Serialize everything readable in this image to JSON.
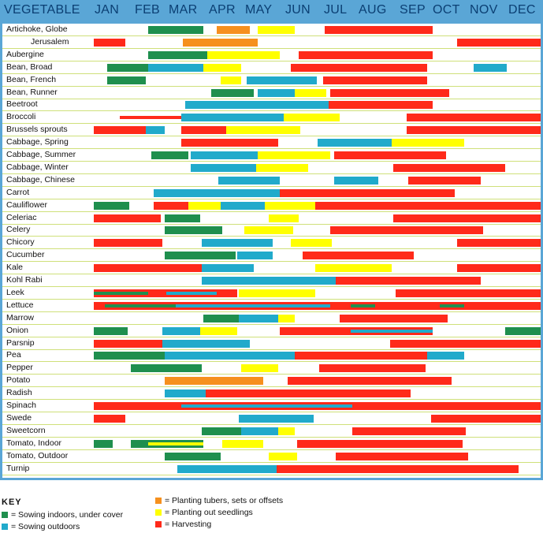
{
  "colors": {
    "sow_indoors": "#1f8f4e",
    "sow_outdoors": "#21aacb",
    "planting_tubers": "#f6901e",
    "planting_seedlings": "#ffff00",
    "harvesting": "#ff2a1a",
    "header_text": "#0b3f73"
  },
  "key": {
    "title": "KEY",
    "items": [
      {
        "type": "sow_indoors",
        "label": "= Sowing indoors, under cover"
      },
      {
        "type": "sow_outdoors",
        "label": "= Sowing outdoors"
      },
      {
        "type": "planting_tubers",
        "label": "= Planting tubers, sets or offsets"
      },
      {
        "type": "planting_seedlings",
        "label": "= Planting out seedlings"
      },
      {
        "type": "harvesting",
        "label": "= Harvesting"
      }
    ]
  },
  "chart_data": {
    "type": "gantt",
    "title": "",
    "column_header": "VEGETABLE",
    "months": [
      "JAN",
      "FEB",
      "MAR",
      "APR",
      "MAY",
      "JUN",
      "JUL",
      "AUG",
      "SEP",
      "OCT",
      "NOV",
      "DEC"
    ],
    "x_unit": "month (0 = start of Jan, 12 = end of Dec)",
    "rows": [
      {
        "name": "Artichoke, Globe",
        "bars": [
          {
            "t": "sow_indoors",
            "s": 1.45,
            "e": 2.95
          },
          {
            "t": "planting_tubers",
            "s": 3.3,
            "e": 4.2
          },
          {
            "t": "planting_seedlings",
            "s": 4.4,
            "e": 5.4
          },
          {
            "t": "harvesting",
            "s": 6.2,
            "e": 9.1
          }
        ]
      },
      {
        "name": "Jerusalem",
        "indent": true,
        "bars": [
          {
            "t": "harvesting",
            "s": 0,
            "e": 0.85
          },
          {
            "t": "planting_tubers",
            "s": 2.4,
            "e": 4.4
          },
          {
            "t": "harvesting",
            "s": 9.75,
            "e": 12
          }
        ]
      },
      {
        "name": "Aubergine",
        "bars": [
          {
            "t": "sow_indoors",
            "s": 1.45,
            "e": 3.05
          },
          {
            "t": "planting_seedlings",
            "s": 3.05,
            "e": 5.0
          },
          {
            "t": "harvesting",
            "s": 5.5,
            "e": 9.1
          }
        ]
      },
      {
        "name": "Bean, Broad",
        "bars": [
          {
            "t": "sow_indoors",
            "s": 0.35,
            "e": 1.45
          },
          {
            "t": "sow_outdoors",
            "s": 1.45,
            "e": 2.95
          },
          {
            "t": "planting_seedlings",
            "s": 2.95,
            "e": 3.95
          },
          {
            "t": "harvesting",
            "s": 5.3,
            "e": 8.95
          },
          {
            "t": "sow_outdoors",
            "s": 10.2,
            "e": 11.1
          }
        ]
      },
      {
        "name": "Bean, French",
        "bars": [
          {
            "t": "sow_indoors",
            "s": 0.35,
            "e": 1.4
          },
          {
            "t": "planting_seedlings",
            "s": 3.4,
            "e": 3.95
          },
          {
            "t": "sow_outdoors",
            "s": 4.1,
            "e": 6.0
          },
          {
            "t": "harvesting",
            "s": 6.15,
            "e": 8.95
          }
        ]
      },
      {
        "name": "Bean, Runner",
        "bars": [
          {
            "t": "sow_indoors",
            "s": 3.15,
            "e": 4.3
          },
          {
            "t": "sow_outdoors",
            "s": 4.4,
            "e": 5.4
          },
          {
            "t": "planting_seedlings",
            "s": 5.4,
            "e": 6.25
          },
          {
            "t": "harvesting",
            "s": 6.35,
            "e": 9.55
          }
        ]
      },
      {
        "name": "Beetroot",
        "bars": [
          {
            "t": "sow_outdoors",
            "s": 2.45,
            "e": 6.3
          },
          {
            "t": "harvesting",
            "s": 6.3,
            "e": 9.1
          }
        ]
      },
      {
        "name": "Broccoli",
        "bars": [
          {
            "t": "harvesting",
            "thin": true,
            "s": 0.7,
            "e": 5.0
          },
          {
            "t": "sow_outdoors",
            "s": 2.35,
            "e": 5.25
          },
          {
            "t": "planting_seedlings",
            "s": 5.1,
            "e": 6.6
          },
          {
            "t": "harvesting",
            "s": 8.4,
            "e": 12
          }
        ]
      },
      {
        "name": "Brussels sprouts",
        "bars": [
          {
            "t": "harvesting",
            "s": 0,
            "e": 1.4
          },
          {
            "t": "sow_outdoors",
            "s": 1.4,
            "e": 1.9
          },
          {
            "t": "harvesting",
            "s": 2.35,
            "e": 3.55
          },
          {
            "t": "planting_seedlings",
            "s": 3.55,
            "e": 5.55
          },
          {
            "t": "harvesting",
            "s": 8.4,
            "e": 12
          }
        ]
      },
      {
        "name": "Cabbage, Spring",
        "bars": [
          {
            "t": "harvesting",
            "s": 2.35,
            "e": 4.95
          },
          {
            "t": "sow_outdoors",
            "s": 6.0,
            "e": 8.0
          },
          {
            "t": "planting_seedlings",
            "s": 8.0,
            "e": 9.95
          }
        ]
      },
      {
        "name": "Cabbage, Summer",
        "bars": [
          {
            "t": "sow_indoors",
            "s": 1.55,
            "e": 2.55
          },
          {
            "t": "sow_outdoors",
            "s": 2.6,
            "e": 4.4
          },
          {
            "t": "planting_seedlings",
            "s": 4.4,
            "e": 6.35
          },
          {
            "t": "harvesting",
            "s": 6.45,
            "e": 9.45
          }
        ]
      },
      {
        "name": "Cabbage, Winter",
        "bars": [
          {
            "t": "sow_outdoors",
            "s": 2.6,
            "e": 4.35
          },
          {
            "t": "planting_seedlings",
            "s": 4.35,
            "e": 5.75
          },
          {
            "t": "harvesting",
            "s": 8.05,
            "e": 11.05
          }
        ]
      },
      {
        "name": "Cabbage, Chinese",
        "bars": [
          {
            "t": "sow_outdoors",
            "s": 3.35,
            "e": 5.0
          },
          {
            "t": "sow_outdoors",
            "s": 6.45,
            "e": 7.65
          },
          {
            "t": "harvesting",
            "s": 8.45,
            "e": 10.4
          }
        ]
      },
      {
        "name": "Carrot",
        "bars": [
          {
            "t": "sow_outdoors",
            "s": 1.6,
            "e": 6.0
          },
          {
            "t": "harvesting",
            "s": 5.0,
            "e": 9.7
          }
        ]
      },
      {
        "name": "Cauliflower",
        "bars": [
          {
            "t": "sow_indoors",
            "s": 0,
            "e": 0.95
          },
          {
            "t": "harvesting",
            "s": 1.6,
            "e": 12
          },
          {
            "t": "planting_seedlings",
            "s": 2.55,
            "e": 5.95
          },
          {
            "t": "sow_outdoors",
            "s": 3.4,
            "e": 4.6
          }
        ]
      },
      {
        "name": "Celeriac",
        "bars": [
          {
            "t": "harvesting",
            "s": 0,
            "e": 1.8
          },
          {
            "t": "sow_indoors",
            "s": 1.9,
            "e": 2.85
          },
          {
            "t": "planting_seedlings",
            "s": 4.7,
            "e": 5.5
          },
          {
            "t": "harvesting",
            "s": 8.05,
            "e": 12
          }
        ]
      },
      {
        "name": "Celery",
        "bars": [
          {
            "t": "sow_indoors",
            "s": 1.9,
            "e": 3.45
          },
          {
            "t": "planting_seedlings",
            "s": 4.05,
            "e": 5.35
          },
          {
            "t": "harvesting",
            "s": 6.35,
            "e": 10.45
          }
        ]
      },
      {
        "name": "Chicory",
        "bars": [
          {
            "t": "harvesting",
            "s": 0,
            "e": 1.85
          },
          {
            "t": "sow_outdoors",
            "s": 2.9,
            "e": 4.8
          },
          {
            "t": "planting_seedlings",
            "s": 5.3,
            "e": 6.4
          },
          {
            "t": "harvesting",
            "s": 9.75,
            "e": 12
          }
        ]
      },
      {
        "name": "Cucumber",
        "bars": [
          {
            "t": "sow_indoors",
            "s": 1.9,
            "e": 3.8
          },
          {
            "t": "sow_outdoors",
            "s": 3.85,
            "e": 4.8
          },
          {
            "t": "harvesting",
            "s": 5.6,
            "e": 8.6
          }
        ]
      },
      {
        "name": "Kale",
        "bars": [
          {
            "t": "harvesting",
            "s": 0,
            "e": 2.9
          },
          {
            "t": "sow_outdoors",
            "s": 2.9,
            "e": 4.3
          },
          {
            "t": "planting_seedlings",
            "s": 5.95,
            "e": 8.0
          },
          {
            "t": "harvesting",
            "s": 9.75,
            "e": 12
          }
        ]
      },
      {
        "name": "Kohl Rabi",
        "bars": [
          {
            "t": "sow_outdoors",
            "s": 2.9,
            "e": 6.5
          },
          {
            "t": "harvesting",
            "s": 6.5,
            "e": 10.4
          }
        ]
      },
      {
        "name": "Leek",
        "bars": [
          {
            "t": "harvesting",
            "s": 0,
            "e": 3.85
          },
          {
            "t": "sow_indoors",
            "thin": true,
            "s": 0,
            "e": 1.45
          },
          {
            "t": "sow_outdoors",
            "thin": true,
            "s": 1.95,
            "e": 3.3
          },
          {
            "t": "planting_seedlings",
            "s": 3.9,
            "e": 5.95
          },
          {
            "t": "harvesting",
            "s": 8.1,
            "e": 12
          }
        ]
      },
      {
        "name": "Lettuce",
        "bars": [
          {
            "t": "harvesting",
            "s": 0,
            "e": 12
          },
          {
            "t": "sow_indoors",
            "thin": true,
            "s": 0.3,
            "e": 2.2
          },
          {
            "t": "sow_outdoors",
            "thin": true,
            "s": 2.2,
            "e": 6.35
          },
          {
            "t": "sow_indoors",
            "thin": true,
            "s": 6.9,
            "e": 7.55
          },
          {
            "t": "sow_indoors",
            "thin": true,
            "s": 9.3,
            "e": 9.95
          }
        ]
      },
      {
        "name": "Marrow",
        "bars": [
          {
            "t": "sow_indoors",
            "s": 2.95,
            "e": 3.9
          },
          {
            "t": "sow_outdoors",
            "s": 3.9,
            "e": 4.95
          },
          {
            "t": "planting_seedlings",
            "s": 4.95,
            "e": 5.4
          },
          {
            "t": "harvesting",
            "s": 6.6,
            "e": 9.5
          }
        ]
      },
      {
        "name": "Onion",
        "bars": [
          {
            "t": "sow_indoors",
            "s": 0,
            "e": 0.9
          },
          {
            "t": "sow_outdoors",
            "s": 1.85,
            "e": 2.85
          },
          {
            "t": "planting_seedlings",
            "s": 2.85,
            "e": 3.85
          },
          {
            "t": "harvesting",
            "s": 5.0,
            "e": 9.1
          },
          {
            "t": "sow_outdoors",
            "thin": true,
            "s": 6.9,
            "e": 9.1
          },
          {
            "t": "sow_indoors",
            "s": 11.05,
            "e": 12
          }
        ]
      },
      {
        "name": "Parsnip",
        "bars": [
          {
            "t": "harvesting",
            "s": 0,
            "e": 1.95
          },
          {
            "t": "sow_outdoors",
            "s": 1.85,
            "e": 4.2
          },
          {
            "t": "harvesting",
            "s": 7.95,
            "e": 12
          }
        ]
      },
      {
        "name": "Pea",
        "bars": [
          {
            "t": "sow_indoors",
            "s": 0,
            "e": 1.9
          },
          {
            "t": "sow_outdoors",
            "s": 1.9,
            "e": 5.4
          },
          {
            "t": "harvesting",
            "s": 5.4,
            "e": 8.95
          },
          {
            "t": "sow_outdoors",
            "s": 8.95,
            "e": 9.95
          }
        ]
      },
      {
        "name": "Pepper",
        "bars": [
          {
            "t": "sow_indoors",
            "s": 1.0,
            "e": 2.9
          },
          {
            "t": "planting_seedlings",
            "s": 3.95,
            "e": 4.95
          },
          {
            "t": "harvesting",
            "s": 6.05,
            "e": 8.9
          }
        ]
      },
      {
        "name": "Potato",
        "bars": [
          {
            "t": "planting_tubers",
            "s": 1.9,
            "e": 4.55
          },
          {
            "t": "harvesting",
            "s": 5.2,
            "e": 9.6
          }
        ]
      },
      {
        "name": "Radish",
        "bars": [
          {
            "t": "sow_outdoors",
            "s": 1.9,
            "e": 7.55
          },
          {
            "t": "harvesting",
            "s": 3.0,
            "e": 8.5
          }
        ]
      },
      {
        "name": "Spinach",
        "bars": [
          {
            "t": "harvesting",
            "s": 0,
            "e": 12
          },
          {
            "t": "sow_outdoors",
            "thin": true,
            "s": 2.35,
            "e": 6.95
          }
        ]
      },
      {
        "name": "Swede",
        "bars": [
          {
            "t": "harvesting",
            "s": 0,
            "e": 0.85
          },
          {
            "t": "sow_outdoors",
            "s": 3.9,
            "e": 5.9
          },
          {
            "t": "harvesting",
            "s": 9.05,
            "e": 12
          }
        ]
      },
      {
        "name": "Sweetcorn",
        "bars": [
          {
            "t": "sow_indoors",
            "s": 2.9,
            "e": 3.95
          },
          {
            "t": "sow_outdoors",
            "s": 3.95,
            "e": 4.95
          },
          {
            "t": "planting_seedlings",
            "s": 4.95,
            "e": 5.4
          },
          {
            "t": "harvesting",
            "s": 6.95,
            "e": 10.0
          }
        ]
      },
      {
        "name": "Tomato, Indoor",
        "bars": [
          {
            "t": "sow_indoors",
            "s": 0,
            "e": 0.5
          },
          {
            "t": "sow_indoors",
            "s": 1.0,
            "e": 2.95
          },
          {
            "t": "planting_seedlings",
            "thin": true,
            "s": 1.45,
            "e": 2.95
          },
          {
            "t": "planting_seedlings",
            "s": 3.45,
            "e": 4.55
          },
          {
            "t": "harvesting",
            "s": 5.45,
            "e": 9.9
          }
        ]
      },
      {
        "name": "Tomato, Outdoor",
        "bars": [
          {
            "t": "sow_indoors",
            "s": 1.9,
            "e": 3.4
          },
          {
            "t": "planting_seedlings",
            "s": 4.7,
            "e": 5.45
          },
          {
            "t": "harvesting",
            "s": 6.5,
            "e": 10.05
          }
        ]
      },
      {
        "name": "Turnip",
        "bars": [
          {
            "t": "sow_outdoors",
            "s": 2.25,
            "e": 7.95
          },
          {
            "t": "harvesting",
            "s": 4.9,
            "e": 11.4
          }
        ]
      }
    ]
  }
}
